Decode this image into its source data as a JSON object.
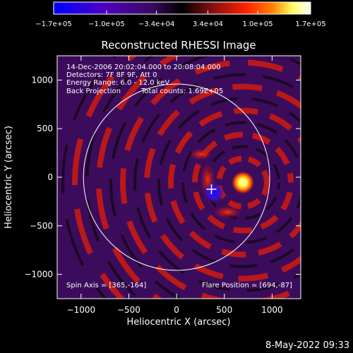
{
  "chart_data": {
    "type": "heatmap",
    "title": "Reconstructed RHESSI Image",
    "xlabel": "Heliocentric X (arcsec)",
    "ylabel": "Heliocentric Y (arcsec)",
    "xlim": [
      -1250,
      1300
    ],
    "ylim": [
      -1250,
      1250
    ],
    "x_ticks": [
      {
        "value": -1000,
        "label": "−1000"
      },
      {
        "value": -500,
        "label": "−500"
      },
      {
        "value": 0,
        "label": "0"
      },
      {
        "value": 500,
        "label": "500"
      },
      {
        "value": 1000,
        "label": "1000"
      }
    ],
    "y_ticks": [
      {
        "value": 1000,
        "label": "1000"
      },
      {
        "value": 500,
        "label": "500"
      },
      {
        "value": 0,
        "label": "0"
      },
      {
        "value": -500,
        "label": "−500"
      },
      {
        "value": -1000,
        "label": "−1000"
      }
    ],
    "colorbar": {
      "range": [
        -170000,
        170000
      ],
      "tick_values": [
        -170000,
        -100000,
        -34000,
        34000,
        100000,
        170000
      ],
      "tick_labels": [
        "−1.7e+05",
        "−1.0e+05",
        "−3.4e+04",
        "3.4e+04",
        "1.0e+05",
        "1.7e+05"
      ],
      "colors": [
        "#0000ff",
        "#5000c0",
        "#3a0a60",
        "#000000",
        "#8a1010",
        "#ff2000",
        "#ff8000",
        "#ffff60",
        "#ffffff"
      ]
    },
    "annotations": [
      "14-Dec-2006 20:02:04.000 to 20:08:04.000",
      "Detectors: 7F 8F 9F, Att 0",
      "Energy Range: 6.0 - 12.0 keV",
      "Back Projection",
      "Total counts: 1.69E+05"
    ],
    "spin_axis": {
      "label": "Spin Axis = [365,-164]",
      "x": 365,
      "y": -164
    },
    "flare_position": {
      "label": "Flare Position = [694,-87]",
      "x": 694,
      "y": -87
    },
    "solar_limb": {
      "center": [
        0,
        0
      ],
      "radius_arcsec": 975
    },
    "sources": [
      {
        "kind": "positive",
        "x": 694,
        "y": -55
      },
      {
        "kind": "negative",
        "x": 390,
        "y": -160
      }
    ]
  },
  "footer": {
    "timestamp": "8-May-2022 09:33"
  }
}
